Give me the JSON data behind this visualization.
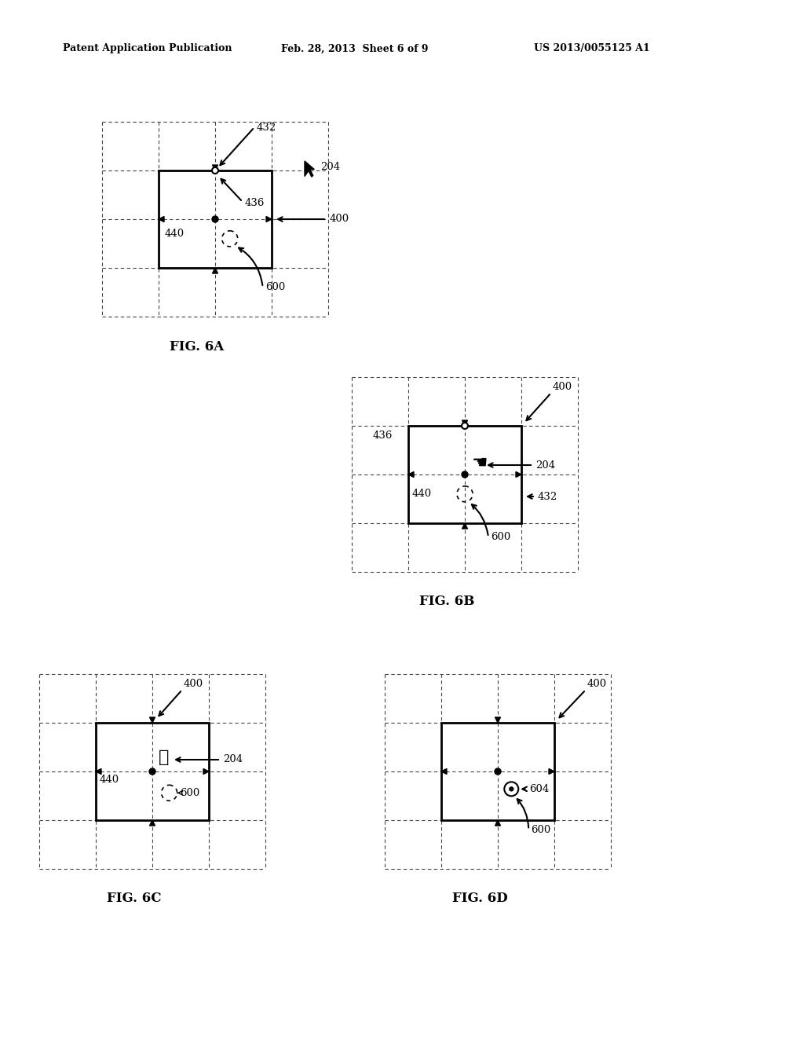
{
  "header_left": "Patent Application Publication",
  "header_mid": "Feb. 28, 2013  Sheet 6 of 9",
  "header_right": "US 2013/0055125 A1",
  "background": "#ffffff"
}
